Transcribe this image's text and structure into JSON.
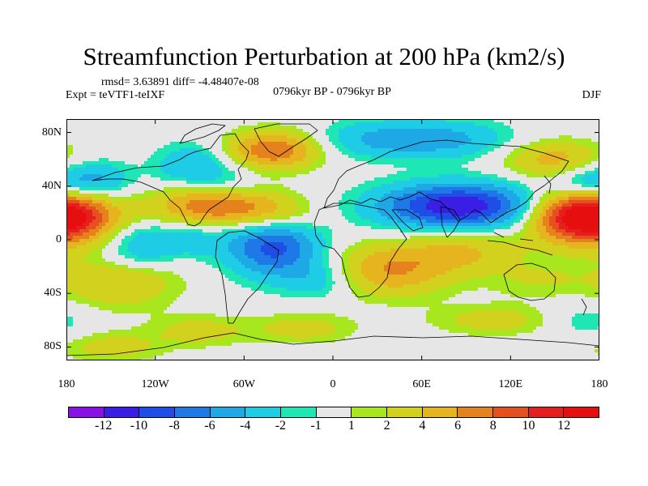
{
  "title": "Streamfunction Perturbation at 200 hPa (km2/s)",
  "stats": "rmsd= 3.63891  diff= -4.48407e-08",
  "experiment": "Expt = teVTF1-teIXF",
  "period": "0796kyr BP - 0796kyr BP",
  "season": "DJF",
  "latitude_labels": [
    "80N",
    "40N",
    "0",
    "40S",
    "80S"
  ],
  "longitude_labels": [
    "180",
    "120W",
    "60W",
    "0",
    "60E",
    "120E",
    "180"
  ],
  "colorbar": {
    "labels": [
      "-12",
      "-10",
      "-8",
      "-6",
      "-4",
      "-2",
      "-1",
      "1",
      "2",
      "4",
      "6",
      "8",
      "10",
      "12"
    ],
    "colors": [
      "#8a10e6",
      "#3a1ee6",
      "#1e4ee6",
      "#1e78e6",
      "#1ea8e6",
      "#1ecce6",
      "#1ee6b4",
      "#e6e6e6",
      "#a8e61e",
      "#d2d21e",
      "#e6b41e",
      "#e6821e",
      "#e6501e",
      "#e61e1e",
      "#e60e0e"
    ]
  },
  "chart_data": {
    "type": "heatmap",
    "title": "Streamfunction Perturbation at 200 hPa (km2/s)",
    "variable": "200 hPa streamfunction perturbation",
    "units": "km2/s",
    "xlim": [
      -180,
      180
    ],
    "ylim": [
      -90,
      90
    ],
    "contour_levels": [
      -12,
      -10,
      -8,
      -6,
      -4,
      -2,
      -1,
      1,
      2,
      4,
      6,
      8,
      10,
      12
    ],
    "anomaly_centers": [
      {
        "lon": -175,
        "lat": 17,
        "value": 10,
        "spread_lon": 22,
        "spread_lat": 14
      },
      {
        "lon": -160,
        "lat": 44,
        "value": -5,
        "spread_lon": 16,
        "spread_lat": 10
      },
      {
        "lon": -145,
        "lat": -32,
        "value": 4,
        "spread_lon": 28,
        "spread_lat": 14
      },
      {
        "lon": -125,
        "lat": 2,
        "value": -3,
        "spread_lon": 22,
        "spread_lat": 8
      },
      {
        "lon": -130,
        "lat": -12,
        "value": -3,
        "spread_lon": 18,
        "spread_lat": 8
      },
      {
        "lon": -90,
        "lat": -2,
        "value": -2,
        "spread_lon": 14,
        "spread_lat": 8
      },
      {
        "lon": -95,
        "lat": 55,
        "value": -4,
        "spread_lon": 18,
        "spread_lat": 12
      },
      {
        "lon": -70,
        "lat": 40,
        "value": -2,
        "spread_lon": 14,
        "spread_lat": 10
      },
      {
        "lon": -40,
        "lat": 67,
        "value": 8,
        "spread_lon": 22,
        "spread_lat": 10
      },
      {
        "lon": -80,
        "lat": 26,
        "value": 8,
        "spread_lon": 28,
        "spread_lat": 10
      },
      {
        "lon": -40,
        "lat": 18,
        "value": 4,
        "spread_lon": 22,
        "spread_lat": 10
      },
      {
        "lon": -40,
        "lat": -5,
        "value": -9,
        "spread_lon": 22,
        "spread_lat": 16
      },
      {
        "lon": -10,
        "lat": -30,
        "value": -3,
        "spread_lon": 16,
        "spread_lat": 10
      },
      {
        "lon": -150,
        "lat": -80,
        "value": 3,
        "spread_lon": 24,
        "spread_lat": 8
      },
      {
        "lon": -90,
        "lat": -68,
        "value": 3,
        "spread_lon": 22,
        "spread_lat": 8
      },
      {
        "lon": -20,
        "lat": -66,
        "value": 3,
        "spread_lon": 24,
        "spread_lat": 8
      },
      {
        "lon": 40,
        "lat": -22,
        "value": 6,
        "spread_lon": 28,
        "spread_lat": 14
      },
      {
        "lon": 90,
        "lat": -8,
        "value": 4,
        "spread_lon": 26,
        "spread_lat": 12
      },
      {
        "lon": 85,
        "lat": 25,
        "value": -12,
        "spread_lon": 38,
        "spread_lat": 12
      },
      {
        "lon": 55,
        "lat": 55,
        "value": 0,
        "spread_lon": 30,
        "spread_lat": 10
      },
      {
        "lon": 30,
        "lat": 75,
        "value": -4,
        "spread_lon": 30,
        "spread_lat": 10
      },
      {
        "lon": 80,
        "lat": 75,
        "value": -4,
        "spread_lon": 30,
        "spread_lat": 10
      },
      {
        "lon": 160,
        "lat": 18,
        "value": 10,
        "spread_lon": 22,
        "spread_lat": 14
      },
      {
        "lon": 150,
        "lat": 60,
        "value": 5,
        "spread_lon": 24,
        "spread_lat": 10
      },
      {
        "lon": 170,
        "lat": 42,
        "value": -5,
        "spread_lon": 16,
        "spread_lat": 10
      },
      {
        "lon": 140,
        "lat": -30,
        "value": 2,
        "spread_lon": 24,
        "spread_lat": 10
      },
      {
        "lon": 170,
        "lat": -60,
        "value": -2,
        "spread_lon": 20,
        "spread_lat": 10
      },
      {
        "lon": 110,
        "lat": -60,
        "value": 3,
        "spread_lon": 30,
        "spread_lat": 8
      }
    ]
  }
}
